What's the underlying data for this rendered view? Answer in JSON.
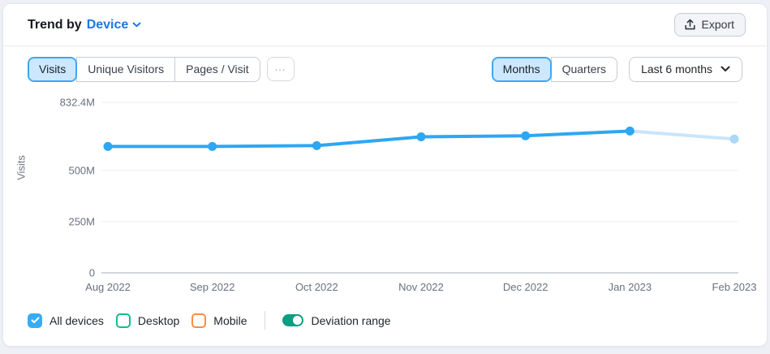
{
  "header": {
    "title_prefix": "Trend by",
    "device_selector": "Device",
    "export_label": "Export"
  },
  "metric_tabs": {
    "items": [
      {
        "label": "Visits",
        "active": true
      },
      {
        "label": "Unique Visitors",
        "active": false
      },
      {
        "label": "Pages / Visit",
        "active": false
      }
    ],
    "more_label": "..."
  },
  "period_tabs": {
    "items": [
      {
        "label": "Months",
        "active": true
      },
      {
        "label": "Quarters",
        "active": false
      }
    ]
  },
  "range_dropdown": {
    "value": "Last 6 months"
  },
  "chart_data": {
    "type": "line",
    "title": "Trend by Device",
    "metric": "Visits",
    "ylabel": "Visits",
    "unit": "M",
    "x": [
      "Aug 2022",
      "Sep 2022",
      "Oct 2022",
      "Nov 2022",
      "Dec 2022",
      "Jan 2023",
      "Feb 2023"
    ],
    "series": [
      {
        "name": "All devices",
        "values": [
          617,
          617,
          621,
          664,
          669,
          692,
          653
        ]
      }
    ],
    "last_point_partial": true,
    "ylim": [
      0,
      832.4
    ],
    "yticks": [
      {
        "value": 832.4,
        "label": "832.4M"
      },
      {
        "value": 500,
        "label": "500M"
      },
      {
        "value": 250,
        "label": "250M"
      },
      {
        "value": 0,
        "label": "0"
      }
    ],
    "grid": true,
    "legend_position": "bottom",
    "colors": {
      "line": "#2EA7F3",
      "partial_line": "#C9E5FB",
      "partial_dot": "#ABD8F7"
    }
  },
  "legend": {
    "items": [
      {
        "label": "All devices",
        "checked": true,
        "color": "#35ADF5"
      },
      {
        "label": "Desktop",
        "checked": false,
        "color": "#10BD94"
      },
      {
        "label": "Mobile",
        "checked": false,
        "color": "#FF8C42"
      }
    ],
    "toggle": {
      "label": "Deviation range",
      "on": true,
      "color": "#0A9E82"
    }
  }
}
